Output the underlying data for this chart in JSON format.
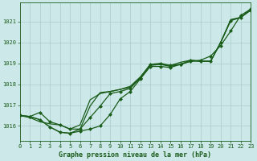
{
  "title": "Graphe pression niveau de la mer (hPa)",
  "bg_color": "#cce8e8",
  "grid_color": "#aacccc",
  "line_color": "#1a5c1a",
  "marker_color": "#1a5c1a",
  "xlim": [
    0,
    23
  ],
  "ylim": [
    1015.3,
    1021.9
  ],
  "yticks": [
    1016,
    1017,
    1018,
    1019,
    1020,
    1021
  ],
  "xticks": [
    0,
    1,
    2,
    3,
    4,
    5,
    6,
    7,
    8,
    9,
    10,
    11,
    12,
    13,
    14,
    15,
    16,
    17,
    18,
    19,
    20,
    21,
    22,
    23
  ],
  "series": [
    {
      "x": [
        0,
        1,
        2,
        3,
        4,
        5,
        6,
        7,
        8,
        9,
        10,
        11,
        12,
        13,
        14,
        15,
        16,
        17,
        18,
        19,
        20,
        21,
        22,
        23
      ],
      "y": [
        1016.5,
        1016.45,
        1016.65,
        1016.2,
        1016.05,
        1015.85,
        1015.85,
        1016.4,
        1016.95,
        1017.55,
        1017.65,
        1017.8,
        1018.3,
        1018.95,
        1019.0,
        1018.9,
        1018.95,
        1019.15,
        1019.1,
        1019.1,
        1020.0,
        1021.05,
        1021.2,
        1021.55
      ],
      "marker": true,
      "lw": 0.9
    },
    {
      "x": [
        0,
        1,
        2,
        3,
        4,
        5,
        6,
        7,
        8,
        9,
        10,
        11,
        12,
        13,
        14,
        15,
        16,
        17,
        18,
        19,
        20,
        21,
        22,
        23
      ],
      "y": [
        1016.5,
        1016.45,
        1016.3,
        1015.95,
        1015.7,
        1015.65,
        1015.75,
        1015.85,
        1016.0,
        1016.55,
        1017.3,
        1017.65,
        1018.25,
        1018.85,
        1018.85,
        1018.8,
        1018.95,
        1019.1,
        1019.15,
        1019.35,
        1019.85,
        1020.55,
        1021.3,
        1021.6
      ],
      "marker": true,
      "lw": 0.9
    },
    {
      "x": [
        0,
        1,
        2,
        3,
        4,
        5,
        6,
        7,
        8,
        9,
        10,
        11,
        12,
        13,
        14,
        15,
        16,
        17,
        18,
        19,
        20,
        21,
        22,
        23
      ],
      "y": [
        1016.5,
        1016.45,
        1016.3,
        1015.95,
        1015.7,
        1015.65,
        1015.85,
        1016.95,
        1017.6,
        1017.65,
        1017.75,
        1017.85,
        1018.3,
        1018.9,
        1018.95,
        1018.9,
        1019.05,
        1019.15,
        1019.1,
        1019.1,
        1020.0,
        1021.05,
        1021.2,
        1021.6
      ],
      "marker": false,
      "lw": 0.9
    },
    {
      "x": [
        0,
        1,
        2,
        3,
        4,
        5,
        6,
        7,
        8,
        9,
        10,
        11,
        12,
        13,
        14,
        15,
        16,
        17,
        18,
        19,
        20,
        21,
        22,
        23
      ],
      "y": [
        1016.5,
        1016.4,
        1016.2,
        1016.1,
        1016.05,
        1015.85,
        1016.05,
        1017.25,
        1017.55,
        1017.65,
        1017.75,
        1017.9,
        1018.35,
        1018.95,
        1018.95,
        1018.85,
        1018.95,
        1019.1,
        1019.1,
        1019.1,
        1020.0,
        1021.1,
        1021.2,
        1021.55
      ],
      "marker": false,
      "lw": 0.9
    }
  ]
}
